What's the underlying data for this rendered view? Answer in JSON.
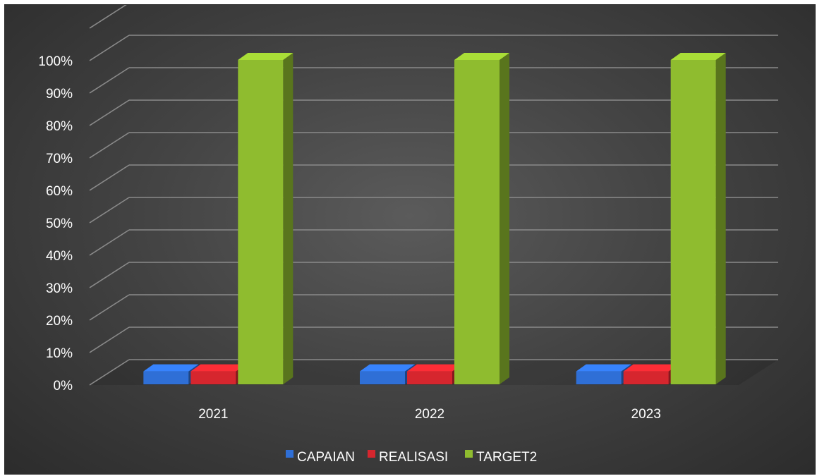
{
  "chart_data": {
    "type": "bar",
    "categories": [
      "2021",
      "2022",
      "2023"
    ],
    "series": [
      {
        "name": "CAPAIAN",
        "values": [
          0.04,
          0.04,
          0.04
        ],
        "color": "#2f6fd6"
      },
      {
        "name": "REALISASI",
        "values": [
          0.04,
          0.04,
          0.04
        ],
        "color": "#d6262e"
      },
      {
        "name": "TARGET2",
        "values": [
          1.0,
          1.0,
          1.0
        ],
        "color": "#8fbc2f"
      }
    ],
    "ylim": [
      0,
      1.1
    ],
    "yticks": [
      "0%",
      "10%",
      "20%",
      "30%",
      "40%",
      "50%",
      "60%",
      "70%",
      "80%",
      "90%",
      "100%"
    ],
    "title": "",
    "xlabel": "",
    "ylabel": "",
    "grid": true,
    "legend_position": "bottom",
    "style": "3d-clustered-column",
    "background": "#3a3a3a"
  }
}
